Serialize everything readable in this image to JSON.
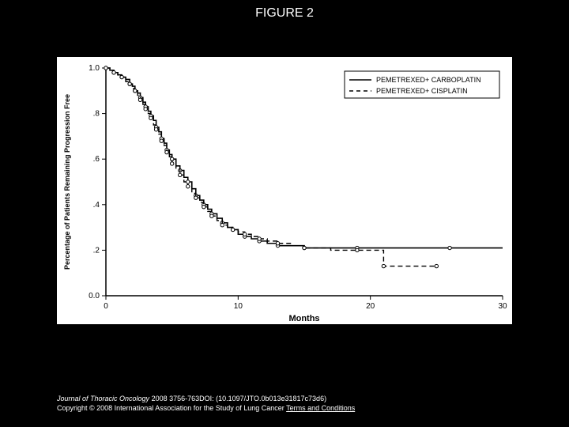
{
  "title": "FIGURE 2",
  "caption": {
    "journal": "Journal of Thoracic Oncology",
    "citation": " 2008 3756-763DOI: (10.1097/JTO.0b013e31817c73d6)",
    "copyright": "Copyright © 2008 International Association for the Study of Lung Cancer",
    "terms_label": "Terms and Conditions"
  },
  "chart": {
    "type": "line",
    "background_color": "#ffffff",
    "plot_border_color": "#000000",
    "grid": false,
    "xlabel": "Months",
    "ylabel": "Percentage of Patients Remaining Progression Free",
    "label_fontsize_x": 11,
    "label_fontsize_y": 9,
    "tick_fontsize": 10,
    "xlim": [
      0,
      30
    ],
    "ylim": [
      0.0,
      1.0
    ],
    "xticks": [
      0,
      10,
      20,
      30
    ],
    "yticks": [
      0.0,
      0.2,
      0.4,
      0.6,
      0.8,
      1.0
    ],
    "ytick_labels": [
      "0.0",
      ".2",
      ".4",
      ".6",
      ".8",
      "1.0"
    ],
    "legend": {
      "position": "top-right",
      "box_border": "#000000",
      "items": [
        {
          "label": "PEMETREXED+ CARBOPLATIN",
          "dash": "solid"
        },
        {
          "label": "PEMETREXED+ CISPLATIN",
          "dash": "dashed"
        }
      ]
    },
    "series": [
      {
        "name": "PEMETREXED+ CARBOPLATIN",
        "color": "#000000",
        "dash": "solid",
        "line_width": 1.6,
        "marker": "circle-open",
        "marker_size": 2.2,
        "step": true,
        "points": [
          [
            0.0,
            1.0
          ],
          [
            0.3,
            0.99
          ],
          [
            0.6,
            0.98
          ],
          [
            0.9,
            0.97
          ],
          [
            1.2,
            0.96
          ],
          [
            1.5,
            0.95
          ],
          [
            1.8,
            0.93
          ],
          [
            2.0,
            0.92
          ],
          [
            2.2,
            0.9
          ],
          [
            2.4,
            0.89
          ],
          [
            2.6,
            0.87
          ],
          [
            2.8,
            0.85
          ],
          [
            3.0,
            0.83
          ],
          [
            3.2,
            0.81
          ],
          [
            3.4,
            0.79
          ],
          [
            3.6,
            0.77
          ],
          [
            3.8,
            0.74
          ],
          [
            4.0,
            0.72
          ],
          [
            4.2,
            0.69
          ],
          [
            4.4,
            0.67
          ],
          [
            4.6,
            0.64
          ],
          [
            4.8,
            0.62
          ],
          [
            5.0,
            0.6
          ],
          [
            5.3,
            0.57
          ],
          [
            5.6,
            0.55
          ],
          [
            5.9,
            0.52
          ],
          [
            6.2,
            0.5
          ],
          [
            6.5,
            0.47
          ],
          [
            6.8,
            0.44
          ],
          [
            7.1,
            0.42
          ],
          [
            7.4,
            0.4
          ],
          [
            7.7,
            0.38
          ],
          [
            8.0,
            0.36
          ],
          [
            8.4,
            0.34
          ],
          [
            8.8,
            0.32
          ],
          [
            9.2,
            0.3
          ],
          [
            9.6,
            0.29
          ],
          [
            10.0,
            0.27
          ],
          [
            10.5,
            0.26
          ],
          [
            11.0,
            0.25
          ],
          [
            11.6,
            0.24
          ],
          [
            12.2,
            0.23
          ],
          [
            13.0,
            0.22
          ],
          [
            14.0,
            0.22
          ],
          [
            15.0,
            0.21
          ],
          [
            17.0,
            0.21
          ],
          [
            19.0,
            0.21
          ],
          [
            22.0,
            0.21
          ],
          [
            26.0,
            0.21
          ],
          [
            30.0,
            0.21
          ]
        ]
      },
      {
        "name": "PEMETREXED+ CISPLATIN",
        "color": "#000000",
        "dash": "dashed",
        "line_width": 1.4,
        "marker": "circle-open",
        "marker_size": 2.2,
        "step": true,
        "points": [
          [
            0.0,
            1.0
          ],
          [
            0.3,
            0.99
          ],
          [
            0.6,
            0.98
          ],
          [
            0.9,
            0.97
          ],
          [
            1.2,
            0.96
          ],
          [
            1.5,
            0.94
          ],
          [
            1.8,
            0.93
          ],
          [
            2.0,
            0.91
          ],
          [
            2.2,
            0.9
          ],
          [
            2.4,
            0.88
          ],
          [
            2.6,
            0.86
          ],
          [
            2.8,
            0.84
          ],
          [
            3.0,
            0.82
          ],
          [
            3.2,
            0.8
          ],
          [
            3.4,
            0.78
          ],
          [
            3.6,
            0.75
          ],
          [
            3.8,
            0.73
          ],
          [
            4.0,
            0.71
          ],
          [
            4.2,
            0.68
          ],
          [
            4.4,
            0.66
          ],
          [
            4.6,
            0.63
          ],
          [
            4.8,
            0.61
          ],
          [
            5.0,
            0.58
          ],
          [
            5.3,
            0.56
          ],
          [
            5.6,
            0.53
          ],
          [
            5.9,
            0.5
          ],
          [
            6.2,
            0.48
          ],
          [
            6.5,
            0.45
          ],
          [
            6.8,
            0.43
          ],
          [
            7.1,
            0.41
          ],
          [
            7.4,
            0.39
          ],
          [
            7.7,
            0.37
          ],
          [
            8.0,
            0.35
          ],
          [
            8.4,
            0.33
          ],
          [
            8.8,
            0.31
          ],
          [
            9.2,
            0.3
          ],
          [
            9.6,
            0.29
          ],
          [
            10.0,
            0.28
          ],
          [
            10.5,
            0.27
          ],
          [
            11.0,
            0.26
          ],
          [
            11.6,
            0.25
          ],
          [
            12.2,
            0.24
          ],
          [
            13.0,
            0.23
          ],
          [
            14.0,
            0.22
          ],
          [
            15.0,
            0.21
          ],
          [
            17.0,
            0.2
          ],
          [
            19.0,
            0.2
          ],
          [
            20.5,
            0.2
          ],
          [
            21.0,
            0.13
          ],
          [
            23.0,
            0.13
          ],
          [
            25.0,
            0.13
          ]
        ]
      }
    ]
  },
  "colors": {
    "page_bg": "#000000",
    "text_on_black": "#ffffff",
    "axis": "#000000"
  }
}
